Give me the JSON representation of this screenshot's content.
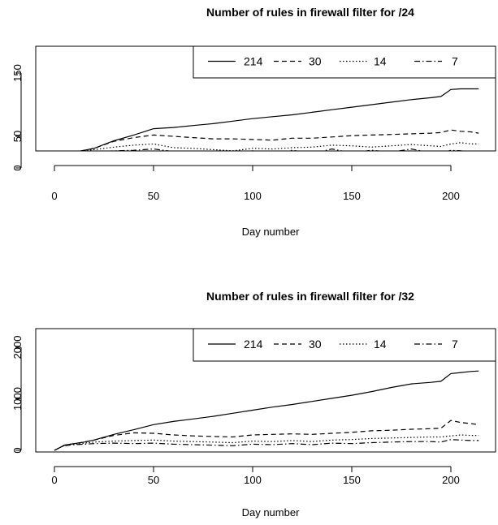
{
  "chart_data": [
    {
      "type": "line",
      "title": "Number of rules in firewall filter for /24",
      "xlabel": "Day number",
      "ylabel": "",
      "xlim": [
        0,
        214
      ],
      "ylim": [
        -5,
        200
      ],
      "xticks": [
        "0",
        "50",
        "100",
        "150",
        "200"
      ],
      "yticks": [
        "0",
        "50",
        "150"
      ],
      "legend_position": "top-right",
      "x": [
        0,
        2,
        5,
        10,
        15,
        20,
        30,
        40,
        50,
        60,
        70,
        80,
        90,
        100,
        110,
        120,
        130,
        140,
        150,
        160,
        170,
        180,
        190,
        195,
        200,
        205,
        210,
        214
      ],
      "series": [
        {
          "name": "214",
          "dash": "solid",
          "values": [
            0,
            10,
            18,
            25,
            28,
            31,
            43,
            52,
            62,
            64,
            67,
            70,
            74,
            78,
            81,
            84,
            88,
            92,
            96,
            100,
            104,
            108,
            111,
            113,
            124,
            125,
            125,
            125
          ]
        },
        {
          "name": "30",
          "dash": "dashed",
          "values": [
            0,
            10,
            18,
            25,
            28,
            31,
            42,
            48,
            52,
            50,
            48,
            46,
            46,
            45,
            44,
            47,
            47,
            49,
            51,
            52,
            53,
            54,
            55,
            56,
            60,
            58,
            57,
            55
          ]
        },
        {
          "name": "14",
          "dash": "dotted",
          "values": [
            0,
            10,
            18,
            25,
            27,
            29,
            33,
            36,
            38,
            32,
            31,
            29,
            27,
            31,
            30,
            32,
            33,
            36,
            35,
            33,
            35,
            37,
            35,
            34,
            38,
            40,
            38,
            38
          ]
        },
        {
          "name": "7",
          "dash": "dashdot",
          "values": [
            0,
            10,
            18,
            24,
            25,
            26,
            27,
            28,
            30,
            26,
            24,
            23,
            22,
            27,
            22,
            28,
            23,
            30,
            24,
            28,
            25,
            30,
            24,
            23,
            28,
            27,
            26,
            26
          ]
        }
      ]
    },
    {
      "type": "line",
      "title": "Number of rules in firewall filter for /32",
      "xlabel": "Day number",
      "ylabel": "",
      "xlim": [
        0,
        214
      ],
      "ylim": [
        -60,
        2400
      ],
      "xticks": [
        "0",
        "50",
        "100",
        "150",
        "200"
      ],
      "yticks": [
        "0",
        "1000",
        "2000"
      ],
      "legend_position": "top-right",
      "x": [
        0,
        2,
        5,
        10,
        15,
        20,
        30,
        40,
        50,
        60,
        70,
        80,
        90,
        100,
        110,
        120,
        130,
        140,
        150,
        160,
        170,
        180,
        190,
        195,
        200,
        205,
        210,
        214
      ],
      "series": [
        {
          "name": "214",
          "dash": "solid",
          "values": [
            0,
            40,
            100,
            130,
            160,
            200,
            310,
            400,
            500,
            560,
            610,
            660,
            720,
            780,
            840,
            890,
            950,
            1010,
            1070,
            1140,
            1220,
            1290,
            1320,
            1340,
            1490,
            1510,
            1530,
            1540
          ]
        },
        {
          "name": "30",
          "dash": "dashed",
          "values": [
            0,
            40,
            100,
            130,
            160,
            200,
            290,
            340,
            330,
            300,
            280,
            270,
            260,
            300,
            310,
            320,
            310,
            330,
            350,
            380,
            390,
            410,
            420,
            430,
            580,
            540,
            520,
            500
          ]
        },
        {
          "name": "14",
          "dash": "dotted",
          "values": [
            0,
            40,
            95,
            120,
            140,
            160,
            180,
            190,
            200,
            180,
            170,
            160,
            150,
            180,
            170,
            190,
            170,
            200,
            210,
            230,
            240,
            250,
            260,
            260,
            280,
            300,
            290,
            290
          ]
        },
        {
          "name": "7",
          "dash": "dashdot",
          "values": [
            0,
            40,
            90,
            110,
            120,
            130,
            140,
            130,
            140,
            120,
            110,
            100,
            90,
            120,
            110,
            130,
            110,
            140,
            130,
            150,
            160,
            170,
            170,
            160,
            210,
            200,
            190,
            190
          ]
        }
      ]
    }
  ]
}
